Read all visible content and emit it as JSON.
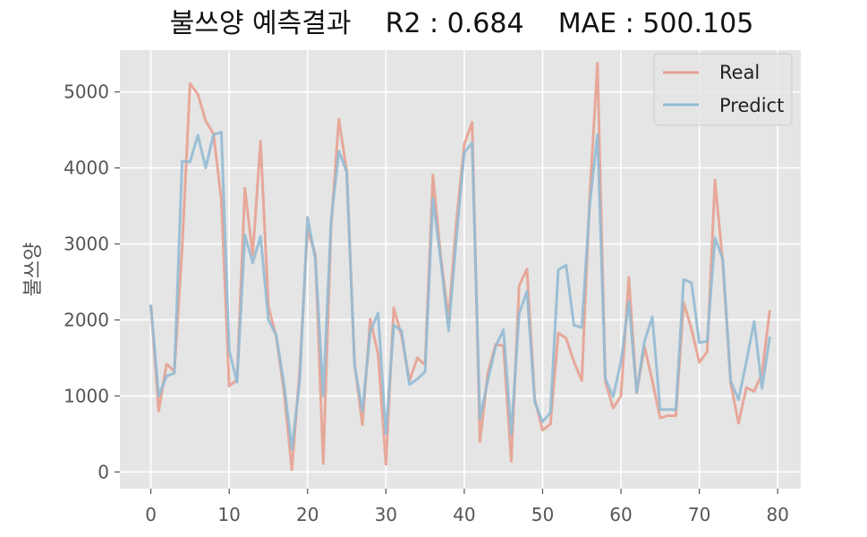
{
  "chart_data": {
    "type": "line",
    "title": "불쓰양 예측결과    R2 : 0.684    MAE : 500.105",
    "xlabel": "",
    "ylabel": "불쓰양",
    "xlim": [
      -3.95,
      82.95
    ],
    "ylim": [
      -220,
      5550
    ],
    "xticks": [
      0,
      10,
      20,
      30,
      40,
      50,
      60,
      70,
      80
    ],
    "yticks": [
      0,
      1000,
      2000,
      3000,
      4000,
      5000
    ],
    "grid": true,
    "style": "ggplot",
    "legend": {
      "position": "top-right"
    },
    "series": [
      {
        "name": "Real",
        "color": "#e5a191",
        "values": [
          2200,
          800,
          1420,
          1320,
          2950,
          5110,
          4970,
          4620,
          4450,
          3580,
          1130,
          1210,
          3730,
          2850,
          4350,
          2180,
          1780,
          1050,
          30,
          1350,
          3200,
          2860,
          110,
          3230,
          4640,
          3950,
          1430,
          620,
          2010,
          1550,
          100,
          2160,
          1790,
          1200,
          1500,
          1410,
          3910,
          2830,
          2020,
          3300,
          4310,
          4600,
          400,
          1290,
          1680,
          1660,
          140,
          2450,
          2670,
          950,
          550,
          630,
          1830,
          1760,
          1450,
          1200,
          3600,
          5380,
          1190,
          840,
          1000,
          2560,
          1040,
          1650,
          1200,
          710,
          740,
          740,
          2230,
          1880,
          1440,
          1580,
          3840,
          2740,
          1170,
          640,
          1110,
          1060,
          1300,
          2130
        ]
      },
      {
        "name": "Predict",
        "color": "#93bad3",
        "values": [
          2200,
          1000,
          1260,
          1300,
          4090,
          4080,
          4430,
          4000,
          4440,
          4470,
          1600,
          1180,
          3120,
          2750,
          3100,
          2000,
          1800,
          1150,
          300,
          1200,
          3350,
          2800,
          1000,
          3300,
          4220,
          3950,
          1400,
          800,
          1850,
          2090,
          500,
          1930,
          1860,
          1150,
          1220,
          1320,
          3600,
          2780,
          1860,
          3080,
          4200,
          4330,
          700,
          1200,
          1650,
          1870,
          500,
          2080,
          2380,
          920,
          660,
          780,
          2660,
          2720,
          1930,
          1900,
          3500,
          4440,
          1230,
          990,
          1450,
          2240,
          1050,
          1720,
          2040,
          820,
          820,
          820,
          2530,
          2490,
          1700,
          1720,
          3080,
          2800,
          1200,
          950,
          1450,
          1980,
          1100,
          1780
        ]
      }
    ]
  }
}
